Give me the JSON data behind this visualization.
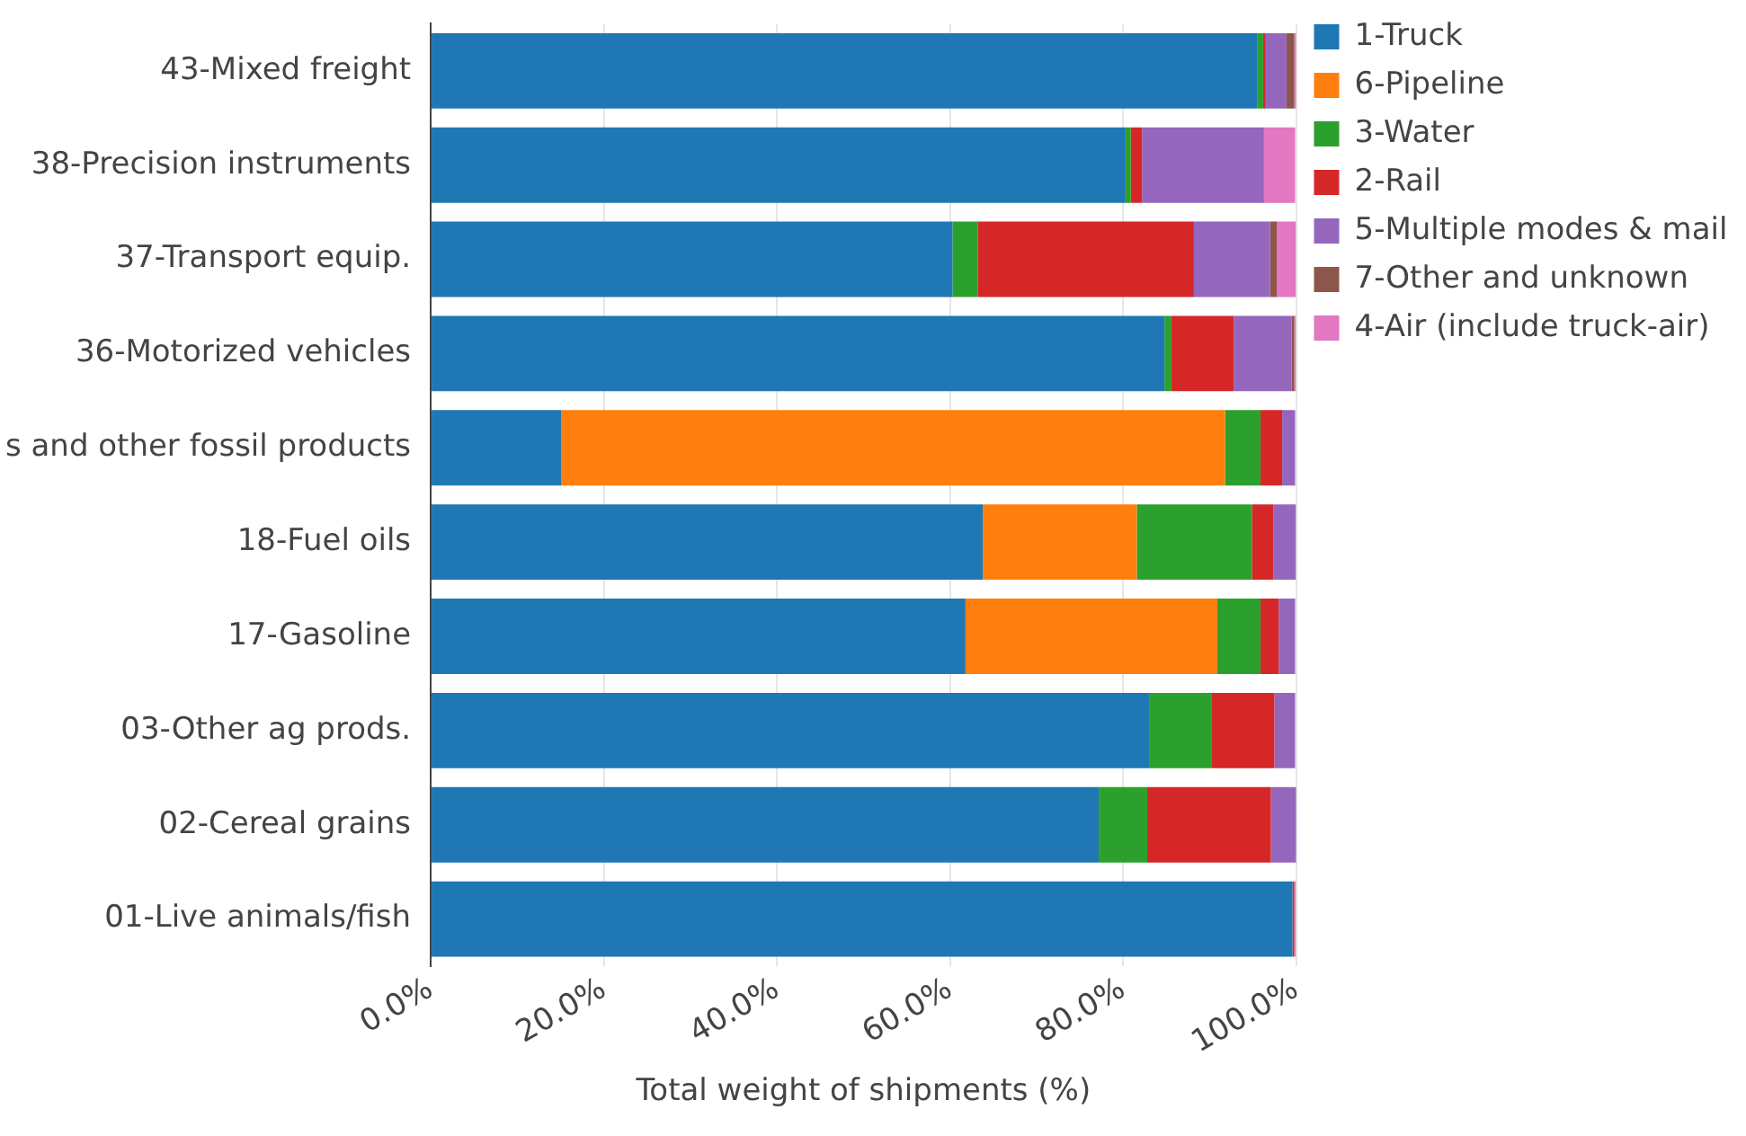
{
  "chart_data": {
    "type": "bar",
    "orientation": "horizontal",
    "stacked": true,
    "xlabel": "Total weight of shipments (%)",
    "categories": [
      "43-Mixed freight",
      "38-Precision instruments",
      "37-Transport equip.",
      "36-Motorized vehicles",
      "s and other fossil products",
      "18-Fuel oils",
      "17-Gasoline",
      "03-Other ag prods.",
      "02-Cereal grains",
      "01-Live animals/fish"
    ],
    "series": [
      {
        "name": "1-Truck",
        "color": "#1f77b4",
        "values": [
          95.5,
          80.3,
          60.3,
          84.8,
          15.1,
          63.8,
          61.8,
          83.1,
          77.2,
          99.6
        ]
      },
      {
        "name": "6-Pipeline",
        "color": "#ff7f0e",
        "values": [
          0,
          0,
          0,
          0,
          76.7,
          17.8,
          29.1,
          0,
          0,
          0
        ]
      },
      {
        "name": "3-Water",
        "color": "#2ca02c",
        "values": [
          0.7,
          0.6,
          2.9,
          0.8,
          4.1,
          13.3,
          5.0,
          7.1,
          5.6,
          0
        ]
      },
      {
        "name": "2-Rail",
        "color": "#d62728",
        "values": [
          0.3,
          1.3,
          25.0,
          7.2,
          2.5,
          2.5,
          2.1,
          7.3,
          14.3,
          0.2
        ]
      },
      {
        "name": "5-Multiple modes & mail",
        "color": "#9467bd",
        "values": [
          2.4,
          14.1,
          8.8,
          6.7,
          1.5,
          2.6,
          1.9,
          2.4,
          3.0,
          0
        ]
      },
      {
        "name": "7-Other and unknown",
        "color": "#8c564b",
        "values": [
          0.9,
          0,
          0.8,
          0.3,
          0,
          0,
          0,
          0,
          0,
          0
        ]
      },
      {
        "name": "4-Air (include truck-air)",
        "color": "#e377c2",
        "values": [
          0.3,
          3.6,
          2.2,
          0.2,
          0,
          0,
          0,
          0,
          0,
          0.2
        ]
      }
    ],
    "xlim": [
      0,
      100
    ],
    "xticks": [
      {
        "value": 0,
        "label": "0.0%"
      },
      {
        "value": 20,
        "label": "20.0%"
      },
      {
        "value": 40,
        "label": "40.0%"
      },
      {
        "value": 60,
        "label": "60.0%"
      },
      {
        "value": 80,
        "label": "80.0%"
      },
      {
        "value": 100,
        "label": "100.0%"
      }
    ],
    "grid": "x",
    "legend": "top right"
  }
}
